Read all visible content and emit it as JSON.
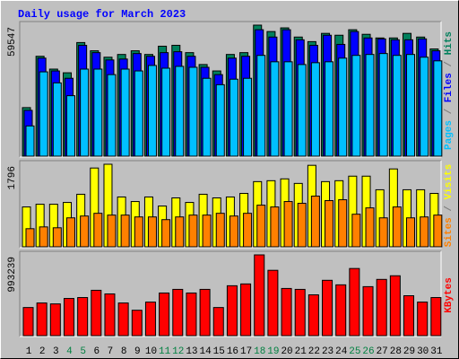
{
  "title": "Daily usage for March 2023",
  "legend_separator": " / ",
  "chart_data": [
    {
      "type": "bar",
      "ylim": [
        0,
        59547
      ],
      "yticks": [
        59547
      ],
      "series": [
        {
          "name": "Pages",
          "color": "#00C0FF",
          "values": [
            13740,
            38310,
            33310,
            27480,
            39560,
            39560,
            37060,
            39560,
            38730,
            41220,
            39970,
            40810,
            40390,
            35390,
            32480,
            34980,
            35390,
            45800,
            42890,
            42890,
            41640,
            42470,
            42890,
            44550,
            45800,
            46220,
            46640,
            45800,
            46220,
            44970,
            43310
          ]
        },
        {
          "name": "Files",
          "color": "#0000FF",
          "values": [
            20820,
            44550,
            38730,
            35390,
            50380,
            47050,
            43720,
            44140,
            46640,
            45390,
            47050,
            47470,
            45390,
            40390,
            37060,
            44550,
            45390,
            57460,
            54130,
            57460,
            52880,
            50380,
            54960,
            50800,
            56630,
            53720,
            53300,
            52880,
            52880,
            53300,
            47890
          ]
        },
        {
          "name": "Hits",
          "color": "#00805C",
          "values": [
            22070,
            45390,
            39560,
            37890,
            51630,
            47890,
            44970,
            46220,
            47890,
            46220,
            49970,
            50380,
            47050,
            41640,
            38730,
            46220,
            47050,
            59547,
            56630,
            58300,
            54130,
            52050,
            55800,
            54960,
            57460,
            55380,
            53720,
            53720,
            55800,
            54130,
            48720
          ]
        }
      ]
    },
    {
      "type": "bar",
      "ylim": [
        0,
        1796
      ],
      "yticks": [
        1796
      ],
      "series": [
        {
          "name": "Sites",
          "color": "#FF8000",
          "values": [
            394,
            433,
            414,
            630,
            670,
            729,
            690,
            690,
            650,
            650,
            591,
            650,
            690,
            690,
            729,
            670,
            729,
            906,
            867,
            985,
            946,
            1103,
            1005,
            1024,
            709,
            847,
            630,
            867,
            630,
            650,
            690
          ]
        },
        {
          "name": "Visits",
          "color": "#FFFF00",
          "values": [
            867,
            926,
            926,
            965,
            1143,
            1714,
            1796,
            1084,
            985,
            1084,
            887,
            1064,
            965,
            1143,
            1064,
            1084,
            1162,
            1418,
            1438,
            1478,
            1379,
            1773,
            1418,
            1438,
            1537,
            1537,
            1241,
            1694,
            1241,
            1241,
            1162
          ]
        }
      ]
    },
    {
      "type": "bar",
      "ylim": [
        0,
        993239
      ],
      "yticks": [
        993239
      ],
      "series": [
        {
          "name": "KBytes",
          "color": "#FF0000",
          "values": [
            345960,
            401760,
            390600,
            457560,
            468720,
            558000,
            513360,
            401760,
            312480,
            412920,
            524520,
            569160,
            524520,
            569160,
            345960,
            613800,
            636120,
            993239,
            803520,
            580320,
            569160,
            502200,
            680760,
            624960,
            825840,
            602640,
            691920,
            736560,
            491040,
            412920,
            468720
          ]
        }
      ],
      "categories": [
        "1",
        "2",
        "3",
        "4",
        "5",
        "6",
        "7",
        "8",
        "9",
        "10",
        "11",
        "12",
        "13",
        "14",
        "15",
        "16",
        "17",
        "18",
        "19",
        "20",
        "21",
        "22",
        "23",
        "24",
        "25",
        "26",
        "27",
        "28",
        "29",
        "30",
        "31"
      ],
      "category_colors": [
        "#000000",
        "#000000",
        "#000000",
        "#008040",
        "#008040",
        "#000000",
        "#000000",
        "#000000",
        "#000000",
        "#000000",
        "#008040",
        "#008040",
        "#000000",
        "#000000",
        "#000000",
        "#000000",
        "#000000",
        "#008040",
        "#008040",
        "#000000",
        "#000000",
        "#000000",
        "#000000",
        "#000000",
        "#008040",
        "#008040",
        "#000000",
        "#000000",
        "#000000",
        "#000000",
        "#000000"
      ]
    }
  ]
}
